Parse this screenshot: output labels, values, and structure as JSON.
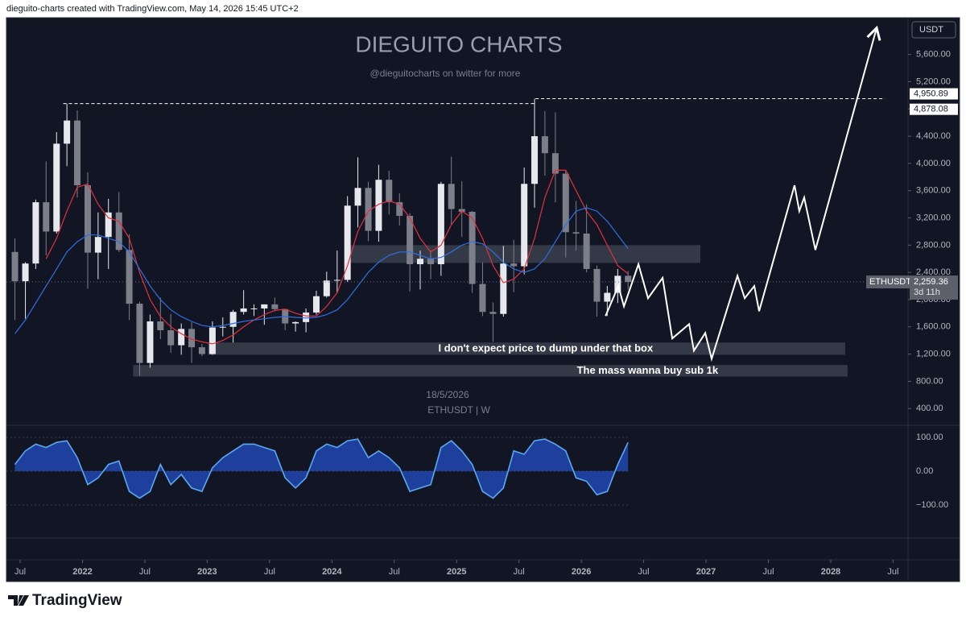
{
  "header": {
    "text": "dieguito-charts created with TradingView.com, May 14, 2026 15:45 UTC+2"
  },
  "chart_data": {
    "type": "candlestick",
    "title": "DIEGUITO CHARTS",
    "subtitle": "@dieguitocharts on twitter for more",
    "date_label": "18/5/2026",
    "symbol_label": "ETHUSDT | W",
    "currency": "USDT",
    "x": [
      2021.458,
      2021.542,
      2021.625,
      2021.708,
      2021.792,
      2021.875,
      2021.958,
      2022.042,
      2022.125,
      2022.208,
      2022.292,
      2022.375,
      2022.458,
      2022.542,
      2022.625,
      2022.708,
      2022.792,
      2022.875,
      2022.958,
      2023.042,
      2023.125,
      2023.208,
      2023.292,
      2023.375,
      2023.458,
      2023.542,
      2023.625,
      2023.708,
      2023.792,
      2023.875,
      2023.958,
      2024.042,
      2024.125,
      2024.208,
      2024.292,
      2024.375,
      2024.458,
      2024.542,
      2024.625,
      2024.708,
      2024.792,
      2024.875,
      2024.958,
      2025.042,
      2025.125,
      2025.208,
      2025.292,
      2025.375,
      2025.458,
      2025.542,
      2025.625,
      2025.708,
      2025.792,
      2025.875,
      2025.958,
      2026.042,
      2026.125,
      2026.208,
      2026.292,
      2026.375
    ],
    "open": [
      2700,
      2270,
      2530,
      3430,
      3000,
      4290,
      4630,
      3680,
      2690,
      2920,
      3280,
      2730,
      1940,
      1070,
      1680,
      1550,
      1330,
      1570,
      1300,
      1200,
      1590,
      1600,
      1820,
      1870,
      1870,
      1930,
      1860,
      1650,
      1670,
      1810,
      2050,
      2280,
      2290,
      3380,
      3640,
      3010,
      3760,
      3430,
      3230,
      2520,
      2600,
      2520,
      3700,
      3330,
      3290,
      2230,
      1820,
      1790,
      2530,
      2490,
      3700,
      4400,
      4150,
      3850,
      2990,
      2970,
      2450,
      1970,
      2100,
      2350
    ],
    "high": [
      2900,
      2550,
      3470,
      4030,
      4460,
      4878.08,
      4780,
      3870,
      3280,
      3480,
      3580,
      2960,
      1970,
      1780,
      2030,
      1790,
      1650,
      1670,
      1350,
      1680,
      1740,
      1850,
      2140,
      1930,
      1930,
      2030,
      1860,
      1680,
      1870,
      2130,
      2410,
      2720,
      3520,
      4090,
      3730,
      3980,
      3890,
      3560,
      3270,
      2720,
      2720,
      3730,
      4100,
      3740,
      3300,
      2550,
      1960,
      2790,
      2880,
      3940,
      4950.89,
      4770,
      4750,
      3900,
      3450,
      3400,
      2500,
      2200,
      2450,
      2420
    ],
    "low": [
      1700,
      1720,
      2450,
      2650,
      2970,
      3960,
      3500,
      2160,
      2300,
      2450,
      2700,
      1700,
      880,
      1000,
      1420,
      1220,
      1190,
      1070,
      1170,
      1190,
      1460,
      1370,
      1780,
      1760,
      1630,
      1830,
      1550,
      1530,
      1520,
      1780,
      2030,
      2100,
      2260,
      3060,
      2860,
      2850,
      3250,
      3090,
      2120,
      2150,
      2300,
      2350,
      3100,
      2920,
      2100,
      1760,
      1380,
      1750,
      2110,
      2370,
      3350,
      3820,
      3430,
      2620,
      2720,
      2400,
      1750,
      1760,
      1950,
      2150
    ],
    "close": [
      2270,
      2530,
      3430,
      3000,
      4290,
      4630,
      3680,
      2690,
      2920,
      3280,
      2730,
      1940,
      1070,
      1680,
      1550,
      1330,
      1570,
      1300,
      1200,
      1590,
      1600,
      1820,
      1870,
      1870,
      1930,
      1860,
      1650,
      1670,
      1810,
      2050,
      2280,
      2290,
      3380,
      3640,
      3010,
      3760,
      3430,
      3230,
      2520,
      2600,
      2520,
      3700,
      3330,
      3290,
      2230,
      1820,
      1790,
      2530,
      2490,
      3700,
      4400,
      4150,
      3850,
      2990,
      2970,
      2450,
      1970,
      2100,
      2350,
      2259.36
    ],
    "up_color": "#e6e8ee",
    "down_color": "#7c7f8a",
    "moving_averages": [
      {
        "color": "#e0323d",
        "values": [
          null,
          null,
          null,
          2600,
          2900,
          3300,
          3650,
          3700,
          3400,
          3200,
          3150,
          2900,
          2400,
          2000,
          1750,
          1600,
          1500,
          1420,
          1380,
          1350,
          1400,
          1480,
          1600,
          1700,
          1780,
          1840,
          1860,
          1800,
          1760,
          1760,
          1900,
          2100,
          2500,
          3000,
          3300,
          3400,
          3450,
          3400,
          3200,
          2900,
          2700,
          2800,
          3100,
          3300,
          3200,
          2900,
          2500,
          2250,
          2300,
          2450,
          2900,
          3500,
          3900,
          3900,
          3600,
          3300,
          3100,
          2800,
          2500,
          2380
        ]
      },
      {
        "color": "#2f6fe0",
        "values": [
          1500,
          1700,
          1950,
          2200,
          2450,
          2700,
          2850,
          2950,
          2950,
          2900,
          2850,
          2700,
          2450,
          2200,
          2000,
          1850,
          1750,
          1680,
          1620,
          1600,
          1620,
          1650,
          1680,
          1700,
          1720,
          1740,
          1750,
          1740,
          1730,
          1740,
          1780,
          1850,
          2000,
          2200,
          2400,
          2550,
          2650,
          2700,
          2700,
          2650,
          2600,
          2620,
          2700,
          2800,
          2850,
          2820,
          2700,
          2550,
          2450,
          2400,
          2450,
          2600,
          2850,
          3100,
          3300,
          3350,
          3300,
          3150,
          2950,
          2750
        ]
      }
    ],
    "last_price": {
      "label": "ETHUSDT",
      "value_label": "2,259.36",
      "countdown": "3d 11h"
    },
    "levels": [
      {
        "value": 4878.08,
        "value_label": "4,878.08",
        "x": [
          2021.845,
          2025.632
        ]
      },
      {
        "value": 4950.89,
        "value_label": "4,950.89",
        "x": [
          2025.632,
          2028.435
        ]
      }
    ],
    "zones": [
      {
        "x": [
          2024.129,
          2026.955
        ],
        "y": [
          2540,
          2800
        ]
      },
      {
        "x": [
          2023.006,
          2028.116
        ],
        "y": [
          1190,
          1370
        ],
        "label": "I don't expect price to dump under that box"
      },
      {
        "x": [
          2022.406,
          2028.135
        ],
        "y": [
          870,
          1040
        ],
        "label": "The mass wanna buy sub 1k"
      }
    ],
    "projection": {
      "color": "#ffffff",
      "x": [
        2026.194,
        2026.297,
        2026.342,
        2026.458,
        2026.535,
        2026.652,
        2026.729,
        2026.865,
        2026.903,
        2026.994,
        2027.045,
        2027.252,
        2027.31,
        2027.387,
        2027.426,
        2027.71,
        2027.748,
        2027.787,
        2027.877,
        2028.368
      ],
      "y": [
        1760,
        2200,
        1900,
        2520,
        2020,
        2320,
        1430,
        1640,
        1250,
        1510,
        1130,
        2350,
        2020,
        2200,
        1830,
        3680,
        3300,
        3500,
        2730,
        5990
      ]
    },
    "xlim": [
      2021.39,
      2028.62
    ],
    "xticks": [
      {
        "value": 2021.5,
        "label": "Jul"
      },
      2022,
      {
        "value": 2022.5,
        "label": "Jul"
      },
      2023,
      {
        "value": 2023.5,
        "label": "Jul"
      },
      2024,
      {
        "value": 2024.5,
        "label": "Jul"
      },
      2025,
      {
        "value": 2025.5,
        "label": "Jul"
      },
      2026,
      {
        "value": 2026.5,
        "label": "Jul"
      },
      2027,
      {
        "value": 2027.5,
        "label": "Jul"
      },
      2028,
      {
        "value": 2028.5,
        "label": "Jul"
      }
    ],
    "ylim": [
      190,
      6140
    ],
    "yticks": [
      {
        "value": 400,
        "label": "400.00"
      },
      {
        "value": 800,
        "label": "800.00"
      },
      {
        "value": 1200,
        "label": "1,200.00"
      },
      {
        "value": 1600,
        "label": "1,600.00"
      },
      {
        "value": 2000,
        "label": "2,000.00"
      },
      {
        "value": 2400,
        "label": "2,400.00"
      },
      {
        "value": 2800,
        "label": "2,800.00"
      },
      {
        "value": 3200,
        "label": "3,200.00"
      },
      {
        "value": 3600,
        "label": "3,600.00"
      },
      {
        "value": 4000,
        "label": "4,000.00"
      },
      {
        "value": 4400,
        "label": "4,400.00"
      },
      {
        "value": 4800,
        "label": "4,800.00"
      },
      {
        "value": 5200,
        "label": "5,200.00"
      },
      {
        "value": 5600,
        "label": "5,600.00"
      }
    ],
    "oscillator": {
      "color": "#5aa9f0",
      "values": [
        20,
        60,
        80,
        70,
        85,
        90,
        40,
        -40,
        -20,
        20,
        30,
        -60,
        -80,
        -60,
        20,
        -40,
        -10,
        -50,
        -60,
        10,
        40,
        60,
        80,
        80,
        70,
        60,
        -20,
        -50,
        -20,
        60,
        80,
        70,
        90,
        95,
        40,
        60,
        40,
        10,
        -60,
        -50,
        -40,
        70,
        90,
        60,
        20,
        -60,
        -80,
        -50,
        60,
        50,
        90,
        95,
        80,
        60,
        -20,
        -30,
        -70,
        -60,
        20,
        85
      ],
      "ylim": [
        -198,
        131
      ],
      "yticks": [
        {
          "value": 100,
          "label": "100.00"
        },
        {
          "value": 0,
          "label": "0.00"
        },
        {
          "value": -100,
          "label": "−100.00"
        }
      ]
    }
  },
  "footer": {
    "brand": "TradingView"
  }
}
